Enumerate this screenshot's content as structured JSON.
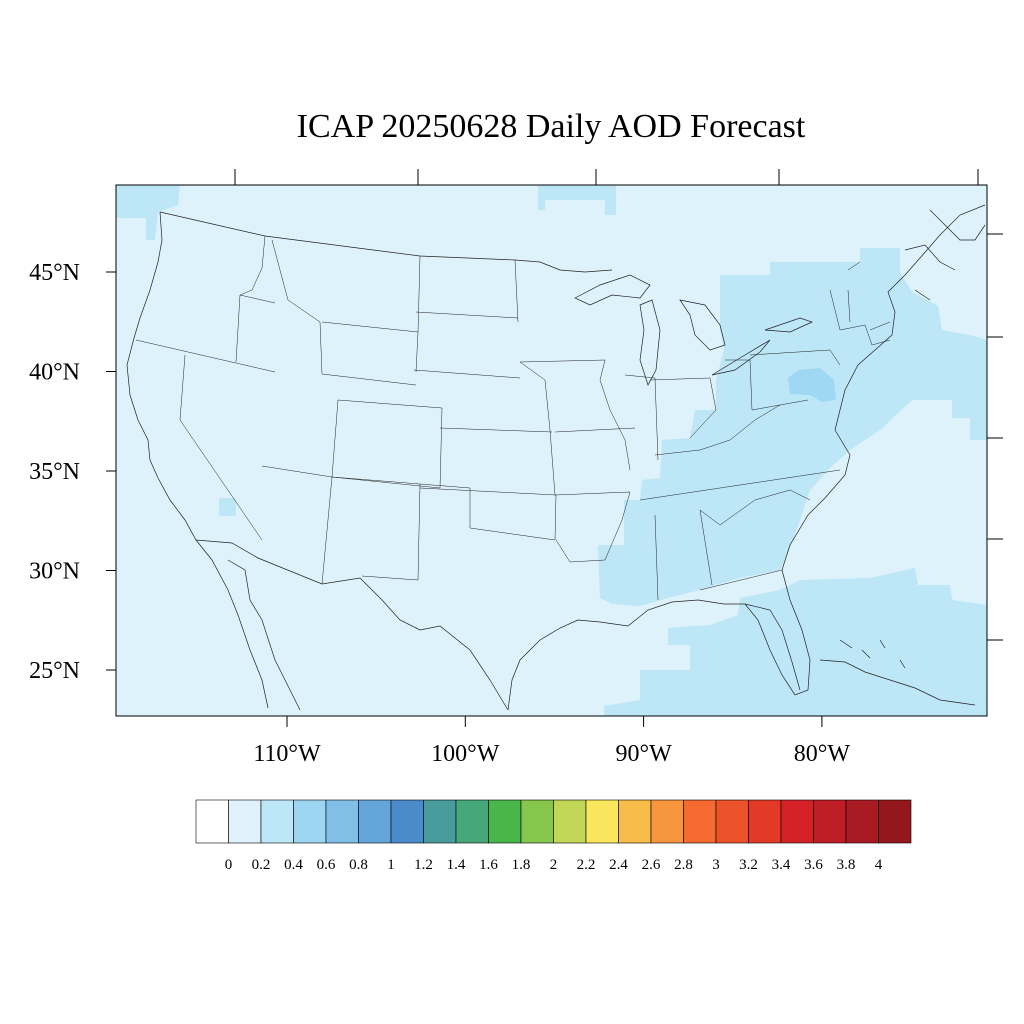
{
  "title": "ICAP 20250628 Daily AOD Forecast",
  "map": {
    "lat_range": [
      22.7,
      49.5
    ],
    "lon_range": [
      -119.7,
      -70.7
    ],
    "lat_ticks": [
      {
        "value": 45,
        "label": "45°N"
      },
      {
        "value": 40,
        "label": "40°N"
      },
      {
        "value": 35,
        "label": "35°N"
      },
      {
        "value": 30,
        "label": "30°N"
      },
      {
        "value": 25,
        "label": "25°N"
      }
    ],
    "lon_ticks": [
      {
        "value": -110,
        "label": "110°W"
      },
      {
        "value": -100,
        "label": "100°W"
      },
      {
        "value": -90,
        "label": "90°W"
      },
      {
        "value": -80,
        "label": "80°W"
      }
    ],
    "background_aod_color": "#ddf2fb",
    "colors": {
      "aod_0_2_to_0_4": "#bde6f7",
      "aod_0_4_to_0_6": "#9fd8f2"
    }
  },
  "colorbar": {
    "colors": [
      "#ffffff",
      "#dff2fb",
      "#bde6f7",
      "#9dd6f3",
      "#81bfe6",
      "#65a6da",
      "#4a8bcb",
      "#489c9c",
      "#46a878",
      "#49b64b",
      "#86c64c",
      "#c2d757",
      "#f9e65c",
      "#f8bc4b",
      "#f7963e",
      "#f46a30",
      "#ec5229",
      "#e23a26",
      "#d42127",
      "#be1d25",
      "#a91b22",
      "#93171c"
    ],
    "labels": [
      "0",
      "0.2",
      "0.4",
      "0.6",
      "0.8",
      "1",
      "1.2",
      "1.4",
      "1.6",
      "1.8",
      "2",
      "2.2",
      "2.4",
      "2.6",
      "2.8",
      "3",
      "3.2",
      "3.4",
      "3.6",
      "3.8",
      "4"
    ]
  }
}
